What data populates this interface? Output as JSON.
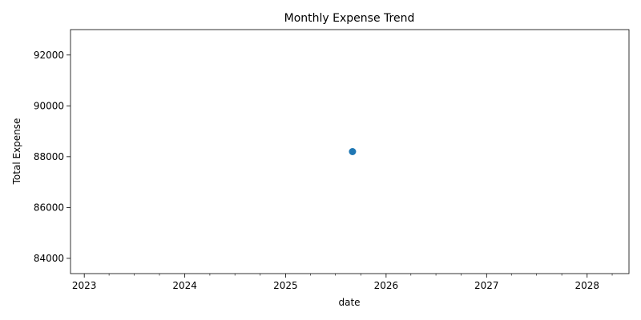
{
  "chart_data": {
    "type": "line",
    "title": "Monthly Expense Trend",
    "xlabel": "date",
    "ylabel": "Total Expense",
    "x_ticks": [
      "2023",
      "2024",
      "2025",
      "2026",
      "2027",
      "2028"
    ],
    "y_ticks": [
      84000,
      86000,
      88000,
      90000,
      92000
    ],
    "xlim": [
      "2022-11-12",
      "2028-06-01"
    ],
    "ylim": [
      83400,
      93000
    ],
    "grid": false,
    "series": [
      {
        "color": "#1f77b4",
        "x": [
          "2025-09-01"
        ],
        "y": [
          88200
        ]
      }
    ]
  }
}
